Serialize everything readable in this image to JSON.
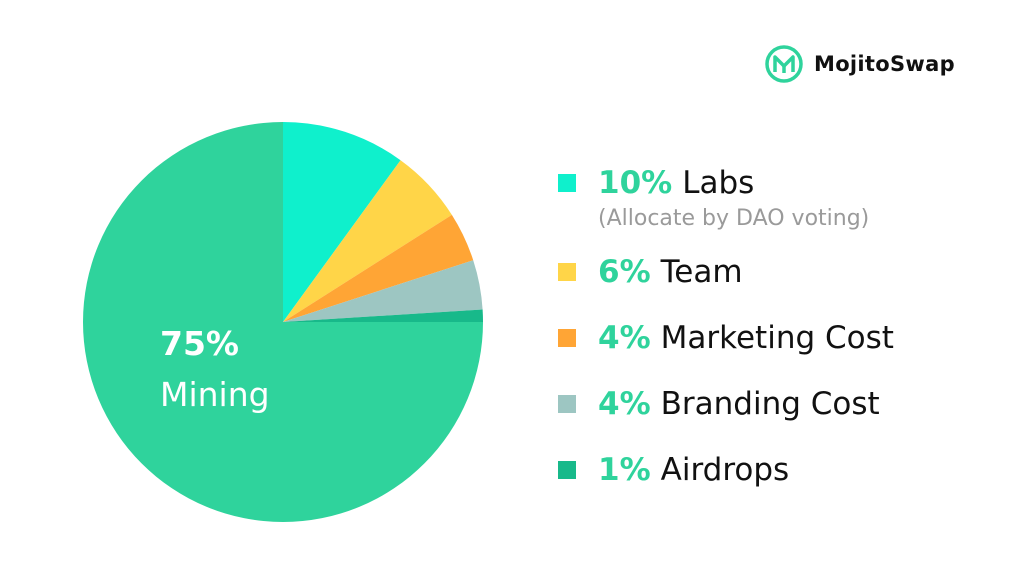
{
  "brand": {
    "name": "MojitoSwap",
    "logo_icon": "mojito-m-icon",
    "color": "#2fd39c"
  },
  "chart_data": {
    "type": "pie",
    "slices": [
      {
        "label": "Mining",
        "percent_text": "75%",
        "value": 75,
        "color": "#2fd39c"
      },
      {
        "label": "Labs",
        "percent_text": "10%",
        "value": 10,
        "color": "#0ff0cc",
        "note": "(Allocate by DAO voting)"
      },
      {
        "label": "Team",
        "percent_text": "6%",
        "value": 6,
        "color": "#ffd548"
      },
      {
        "label": "Marketing Cost",
        "percent_text": "4%",
        "value": 4,
        "color": "#ffa535"
      },
      {
        "label": "Branding Cost",
        "percent_text": "4%",
        "value": 4,
        "color": "#9dc6c2"
      },
      {
        "label": "Airdrops",
        "percent_text": "1%",
        "value": 1,
        "color": "#18b98a"
      }
    ],
    "legend_position": "right",
    "inline_labels": [
      "Mining"
    ]
  }
}
